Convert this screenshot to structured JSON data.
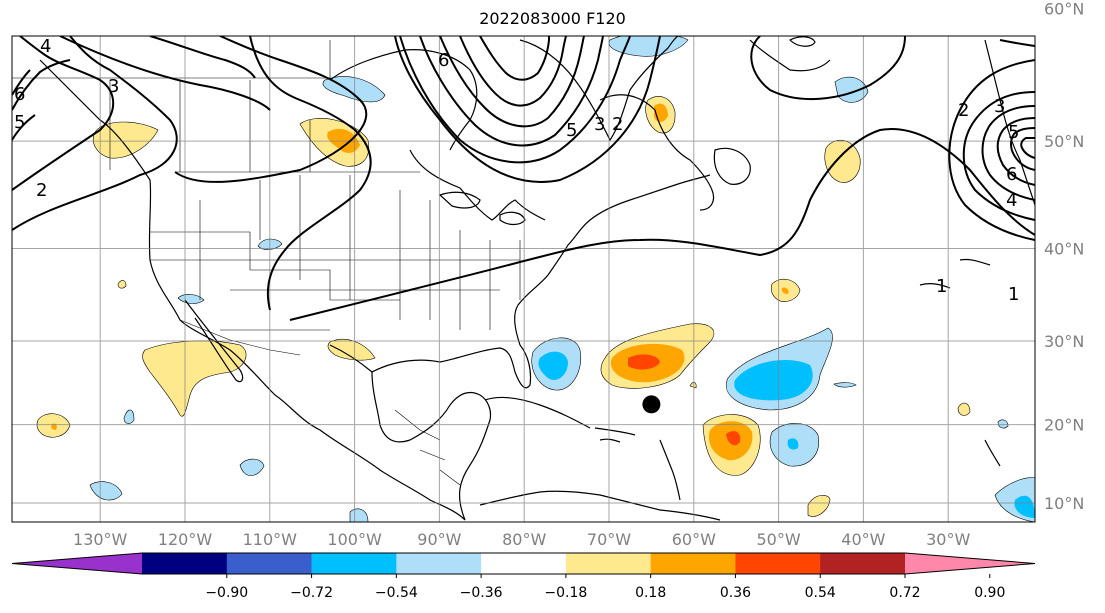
{
  "title": "2022083000 F120",
  "longitudes": [
    {
      "value": -130,
      "label": "130°W"
    },
    {
      "value": -120,
      "label": "120°W"
    },
    {
      "value": -110,
      "label": "110°W"
    },
    {
      "value": -100,
      "label": "100°W"
    },
    {
      "value": -90,
      "label": "90°W"
    },
    {
      "value": -80,
      "label": "80°W"
    },
    {
      "value": -70,
      "label": "70°W"
    },
    {
      "value": -60,
      "label": "60°W"
    },
    {
      "value": -50,
      "label": "50°W"
    },
    {
      "value": -40,
      "label": "40°W"
    },
    {
      "value": -30,
      "label": "30°W"
    }
  ],
  "latitudes": [
    {
      "value": 60,
      "label": "60°N"
    },
    {
      "value": 50,
      "label": "50°N"
    },
    {
      "value": 40,
      "label": "40°N"
    },
    {
      "value": 30,
      "label": "30°N"
    },
    {
      "value": 20,
      "label": "20°N"
    },
    {
      "value": 10,
      "label": "10°N"
    }
  ],
  "colorbar": {
    "colors": [
      "#9932cc",
      "#000080",
      "#3a5fcd",
      "#00bfff",
      "#afdff8",
      "#ffffff",
      "#ffe98f",
      "#ffa500",
      "#ff4500",
      "#b22222",
      "#ff88aa"
    ],
    "ticks": [
      "−0.90",
      "−0.72",
      "−0.54",
      "−0.36",
      "−0.18",
      "0.18",
      "0.36",
      "0.54",
      "0.72",
      "0.90"
    ]
  },
  "contour_labels": [
    "4",
    "6",
    "5",
    "3",
    "2",
    "6",
    "5",
    "3",
    "2",
    "2",
    "3",
    "5",
    "6",
    "4",
    "1",
    "1"
  ],
  "storm_marker": {
    "lon": -65,
    "lat": 22.5
  }
}
